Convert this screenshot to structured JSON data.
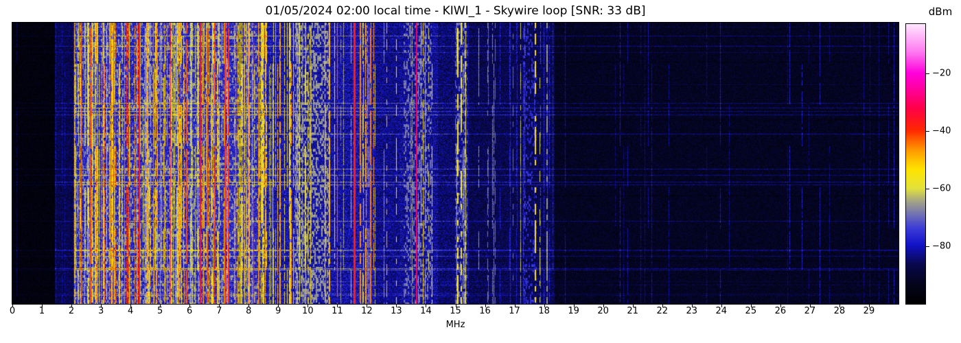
{
  "title": "01/05/2024 02:00 local time - KIWI_1 - Skywire loop [SNR: 33 dB]",
  "axis": {
    "xlabel": "MHz",
    "x_min": 0,
    "x_max": 30,
    "x_ticks": [
      0,
      1,
      2,
      3,
      4,
      5,
      6,
      7,
      8,
      9,
      10,
      11,
      12,
      13,
      14,
      15,
      16,
      17,
      18,
      19,
      20,
      21,
      22,
      23,
      24,
      25,
      26,
      27,
      28,
      29
    ]
  },
  "colorbar": {
    "label": "dBm",
    "vmax": -3,
    "vmin": -100,
    "ticks": [
      {
        "value": -20,
        "label": "−20"
      },
      {
        "value": -40,
        "label": "−40"
      },
      {
        "value": -60,
        "label": "−60"
      },
      {
        "value": -80,
        "label": "−80"
      }
    ]
  },
  "chart_data": {
    "type": "heatmap",
    "subtype": "radio-spectrogram-waterfall",
    "title": "01/05/2024 02:00 local time - KIWI_1 - Skywire loop [SNR: 33 dB]",
    "xlabel": "MHz",
    "x_range": [
      0,
      30
    ],
    "y_axis": "time (unlabeled waterfall rows)",
    "value_units": "dBm",
    "value_range": [
      -100,
      -3
    ],
    "snr_db": 33,
    "seed": 20240105,
    "colormap_stops": [
      [
        0.0,
        [
          0,
          0,
          0
        ]
      ],
      [
        0.07,
        [
          4,
          4,
          28
        ]
      ],
      [
        0.14,
        [
          8,
          8,
          76
        ]
      ],
      [
        0.21,
        [
          18,
          18,
          200
        ]
      ],
      [
        0.27,
        [
          60,
          60,
          216
        ]
      ],
      [
        0.32,
        [
          114,
          114,
          180
        ]
      ],
      [
        0.37,
        [
          168,
          168,
          130
        ]
      ],
      [
        0.412,
        [
          226,
          226,
          60
        ]
      ],
      [
        0.48,
        [
          255,
          228,
          0
        ]
      ],
      [
        0.545,
        [
          255,
          160,
          0
        ]
      ],
      [
        0.59,
        [
          255,
          90,
          0
        ]
      ],
      [
        0.62,
        [
          255,
          40,
          0
        ]
      ],
      [
        0.7,
        [
          255,
          0,
          72
        ]
      ],
      [
        0.77,
        [
          255,
          0,
          160
        ]
      ],
      [
        0.825,
        [
          255,
          0,
          220
        ]
      ],
      [
        0.9,
        [
          255,
          120,
          240
        ]
      ],
      [
        1.0,
        [
          255,
          230,
          255
        ]
      ]
    ],
    "bands": [
      {
        "f0": 0.0,
        "f1": 1.45,
        "base": -96.5,
        "noise": 2.5,
        "act": 0.45,
        "stripe_prob": 0.04,
        "stripe_min": -92,
        "stripe_max": -86
      },
      {
        "f0": 1.45,
        "f1": 2.08,
        "base": -87,
        "noise": 3.0,
        "act": 0.8,
        "stripe_prob": 0.18,
        "stripe_min": -84,
        "stripe_max": -76
      },
      {
        "f0": 2.08,
        "f1": 8.6,
        "base": -77,
        "noise": 4.5,
        "act": 2.0,
        "stripe_prob": 0.52,
        "stripe_min": -64,
        "stripe_max": -37
      },
      {
        "f0": 8.6,
        "f1": 9.95,
        "base": -80,
        "noise": 4.5,
        "act": 1.6,
        "stripe_prob": 0.34,
        "stripe_min": -66,
        "stripe_max": -46
      },
      {
        "f0": 9.95,
        "f1": 11.5,
        "base": -81,
        "noise": 4.5,
        "act": 1.4,
        "stripe_prob": 0.16,
        "stripe_min": -68,
        "stripe_max": -50
      },
      {
        "f0": 11.5,
        "f1": 12.3,
        "base": -80,
        "noise": 4.5,
        "act": 1.4,
        "stripe_prob": 0.3,
        "stripe_min": -64,
        "stripe_max": -44
      },
      {
        "f0": 12.3,
        "f1": 13.1,
        "base": -83,
        "noise": 4.0,
        "act": 1.2,
        "stripe_prob": 0.07,
        "stripe_min": -72,
        "stripe_max": -56
      },
      {
        "f0": 13.1,
        "f1": 14.4,
        "base": -82,
        "noise": 4.5,
        "act": 1.2,
        "stripe_prob": 0.12,
        "stripe_min": -70,
        "stripe_max": -52
      },
      {
        "f0": 14.4,
        "f1": 15.0,
        "base": -85,
        "noise": 4.0,
        "act": 1.1,
        "stripe_prob": 0.04,
        "stripe_min": -74,
        "stripe_max": -62
      },
      {
        "f0": 15.0,
        "f1": 15.45,
        "base": -83,
        "noise": 4.0,
        "act": 1.1,
        "stripe_prob": 0.22,
        "stripe_min": -70,
        "stripe_max": -54
      },
      {
        "f0": 15.45,
        "f1": 18.35,
        "base": -87,
        "noise": 3.5,
        "act": 1.0,
        "stripe_prob": 0.1,
        "stripe_min": -80,
        "stripe_max": -64
      },
      {
        "f0": 18.35,
        "f1": 30.0,
        "base": -92.5,
        "noise": 3.0,
        "act": 1.0,
        "stripe_prob": 0.025,
        "stripe_min": -86,
        "stripe_max": -78
      }
    ],
    "carriers": [
      {
        "f": 2.33,
        "level": -44,
        "w": 0.03,
        "on": 1.0
      },
      {
        "f": 2.65,
        "level": -42,
        "w": 0.03,
        "on": 0.9
      },
      {
        "f": 3.33,
        "level": -40,
        "w": 0.035,
        "on": 1.0
      },
      {
        "f": 3.8,
        "level": -44,
        "w": 0.03,
        "on": 0.85
      },
      {
        "f": 4.3,
        "level": -37,
        "w": 0.055,
        "on": 1.0
      },
      {
        "f": 4.77,
        "level": -43,
        "w": 0.03,
        "on": 0.9
      },
      {
        "f": 5.0,
        "level": -46,
        "w": 0.03,
        "on": 0.8
      },
      {
        "f": 5.35,
        "level": -41,
        "w": 0.03,
        "on": 1.0
      },
      {
        "f": 5.9,
        "level": -42,
        "w": 0.03,
        "on": 0.9
      },
      {
        "f": 6.37,
        "level": -35,
        "w": 0.06,
        "on": 1.0
      },
      {
        "f": 6.6,
        "level": -43,
        "w": 0.03,
        "on": 0.85
      },
      {
        "f": 7.2,
        "level": -38,
        "w": 0.04,
        "on": 1.0
      },
      {
        "f": 7.33,
        "level": -40,
        "w": 0.035,
        "on": 1.0
      },
      {
        "f": 7.85,
        "level": -42,
        "w": 0.03,
        "on": 0.9
      },
      {
        "f": 8.0,
        "level": -44,
        "w": 0.03,
        "on": 0.85
      },
      {
        "f": 8.33,
        "level": -47,
        "w": 0.03,
        "on": 0.8
      },
      {
        "f": 9.05,
        "level": -49,
        "w": 0.03,
        "on": 0.8
      },
      {
        "f": 9.42,
        "level": -48,
        "w": 0.035,
        "on": 0.75
      },
      {
        "f": 9.65,
        "level": -52,
        "w": 0.03,
        "on": 0.7
      },
      {
        "f": 10.0,
        "level": -55,
        "w": 0.03,
        "on": 0.6
      },
      {
        "f": 10.74,
        "level": -49,
        "w": 0.035,
        "on": 0.85
      },
      {
        "f": 11.0,
        "level": -43,
        "w": 0.04,
        "on": 0.95
      },
      {
        "f": 11.58,
        "level": -38,
        "w": 0.055,
        "on": 1.0
      },
      {
        "f": 11.78,
        "level": -46,
        "w": 0.03,
        "on": 0.8
      },
      {
        "f": 11.89,
        "level": -50,
        "w": 0.03,
        "on": 0.7
      },
      {
        "f": 12.13,
        "level": -45,
        "w": 0.028,
        "on": 0.9
      },
      {
        "f": 12.67,
        "level": -49,
        "w": 0.03,
        "on": 0.45
      },
      {
        "f": 13.0,
        "level": -56,
        "w": 0.028,
        "on": 0.5
      },
      {
        "f": 13.69,
        "level": -31,
        "w": 0.05,
        "on": 1.0
      },
      {
        "f": 13.9,
        "level": -57,
        "w": 0.028,
        "on": 0.45
      },
      {
        "f": 14.1,
        "level": -60,
        "w": 0.028,
        "on": 0.4
      },
      {
        "f": 15.08,
        "level": -55,
        "w": 0.03,
        "on": 0.55
      },
      {
        "f": 15.2,
        "level": -58,
        "w": 0.03,
        "on": 0.5
      },
      {
        "f": 15.32,
        "level": -62,
        "w": 0.028,
        "on": 0.45
      },
      {
        "f": 16.1,
        "level": -68,
        "w": 0.028,
        "on": 0.5
      },
      {
        "f": 16.35,
        "level": -70,
        "w": 0.025,
        "on": 0.45
      },
      {
        "f": 16.95,
        "level": -70,
        "w": 0.025,
        "on": 0.4
      },
      {
        "f": 17.2,
        "level": -62,
        "w": 0.028,
        "on": 0.5
      },
      {
        "f": 17.71,
        "level": -54,
        "w": 0.03,
        "on": 0.6
      },
      {
        "f": 17.85,
        "level": -60,
        "w": 0.028,
        "on": 0.45
      },
      {
        "f": 18.1,
        "level": -66,
        "w": 0.028,
        "on": 0.5
      }
    ],
    "clouds": [
      {
        "f0": 2.1,
        "f1": 2.9,
        "level": -68,
        "prob": 0.25
      },
      {
        "f0": 3.0,
        "f1": 8.55,
        "level": -66,
        "prob": 0.22
      },
      {
        "f0": 9.55,
        "f1": 10.75,
        "level": -66,
        "prob": 0.4
      },
      {
        "f0": 13.25,
        "f1": 14.2,
        "level": -69,
        "prob": 0.28
      },
      {
        "f0": 15.0,
        "f1": 15.4,
        "level": -70,
        "prob": 0.3
      },
      {
        "f0": 17.3,
        "f1": 17.75,
        "level": -76,
        "prob": 0.2
      }
    ],
    "row_streaks": {
      "prob_bright": 0.055,
      "bright_min": 3.0,
      "bright_max": 9.5,
      "prob_dark": 0.05,
      "dark_max": 5.0,
      "prob_strong": 0.018,
      "strong_min": 7.5,
      "strong_max": 11.0
    }
  }
}
